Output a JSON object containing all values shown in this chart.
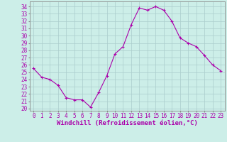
{
  "x": [
    0,
    1,
    2,
    3,
    4,
    5,
    6,
    7,
    8,
    9,
    10,
    11,
    12,
    13,
    14,
    15,
    16,
    17,
    18,
    19,
    20,
    21,
    22,
    23
  ],
  "y": [
    25.5,
    24.3,
    24.0,
    23.2,
    21.5,
    21.2,
    21.2,
    20.2,
    22.2,
    24.5,
    27.5,
    28.5,
    31.5,
    33.8,
    33.5,
    34.0,
    33.5,
    32.0,
    29.7,
    29.0,
    28.5,
    27.3,
    26.0,
    25.2
  ],
  "line_color": "#aa00aa",
  "marker": "+",
  "bg_color": "#cceee8",
  "grid_color": "#aacccc",
  "xlabel": "Windchill (Refroidissement éolien,°C)",
  "ylabel_ticks": [
    20,
    21,
    22,
    23,
    24,
    25,
    26,
    27,
    28,
    29,
    30,
    31,
    32,
    33,
    34
  ],
  "ylim": [
    19.7,
    34.7
  ],
  "xlim": [
    -0.5,
    23.5
  ],
  "spine_color": "#888888",
  "tick_color": "#aa00aa",
  "label_color": "#aa00aa",
  "font_size_xlabel": 6.5,
  "font_size_ytick": 5.5,
  "font_size_xtick": 5.5
}
